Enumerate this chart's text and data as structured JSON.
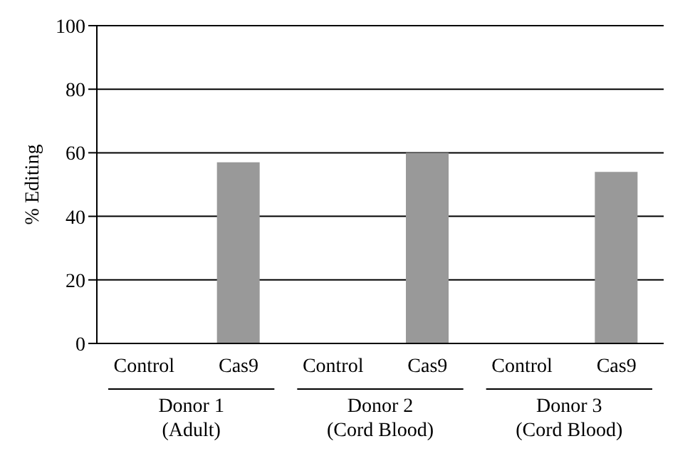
{
  "chart_data": {
    "type": "bar",
    "ylabel": "% Editing",
    "categories": [
      "Control",
      "Cas9",
      "Control",
      "Cas9",
      "Control",
      "Cas9"
    ],
    "values": [
      0,
      57,
      0,
      60,
      0,
      54
    ],
    "color": "#999999",
    "ylim": [
      0,
      100
    ],
    "yticks": [
      0,
      20,
      40,
      60,
      80,
      100
    ],
    "grid": "y",
    "annotations": [
      "Donor 1\n(Adult)",
      "Donor 2\n(Cord Blood)",
      "Donor 3\n(Cord Blood)"
    ]
  }
}
